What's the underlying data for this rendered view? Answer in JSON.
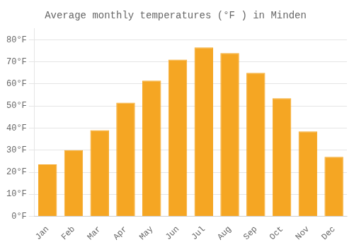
{
  "chart_data": {
    "type": "bar",
    "title": "Average monthly temperatures (°F ) in Minden",
    "categories": [
      "Jan",
      "Feb",
      "Mar",
      "Apr",
      "May",
      "Jun",
      "Jul",
      "Aug",
      "Sep",
      "Oct",
      "Nov",
      "Dec"
    ],
    "values": [
      23.5,
      30.0,
      39.0,
      51.5,
      61.5,
      71.0,
      76.5,
      74.0,
      65.0,
      53.5,
      38.5,
      27.0
    ],
    "color": "#F5A623",
    "ylim": [
      0,
      85
    ],
    "yticks": [
      {
        "value": 0,
        "label": "0°F"
      },
      {
        "value": 10,
        "label": "10°F"
      },
      {
        "value": 20,
        "label": "20°F"
      },
      {
        "value": 30,
        "label": "30°F"
      },
      {
        "value": 40,
        "label": "40°F"
      },
      {
        "value": 50,
        "label": "50°F"
      },
      {
        "value": 60,
        "label": "60°F"
      },
      {
        "value": 70,
        "label": "70°F"
      },
      {
        "value": 80,
        "label": "80°F"
      }
    ],
    "grid": true
  }
}
